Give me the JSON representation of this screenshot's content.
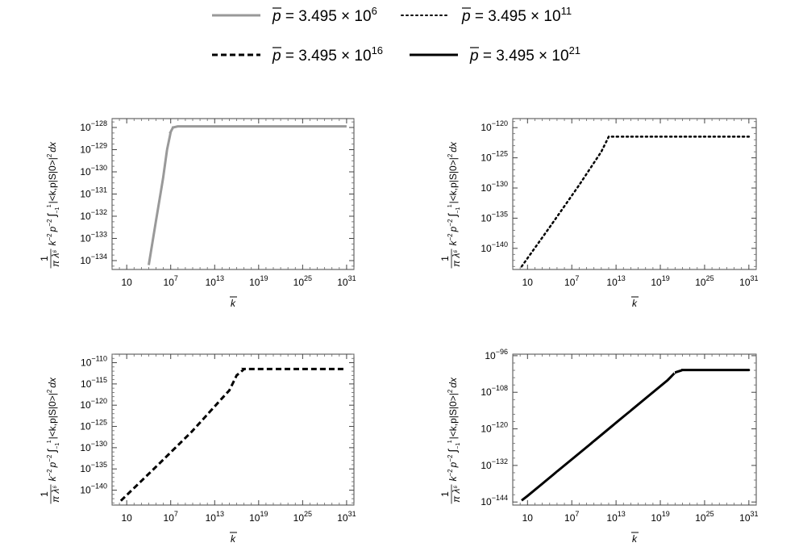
{
  "legend": {
    "entries": [
      {
        "series": "gray",
        "prefix": " = 3.495 × 10",
        "exp": "6",
        "color": "#999999",
        "dash": "solid"
      },
      {
        "series": "dotted",
        "prefix": " = 3.495 × 10",
        "exp": "11",
        "color": "#000000",
        "dash": "dotted"
      },
      {
        "series": "dashed",
        "prefix": " = 3.495 × 10",
        "exp": "16",
        "color": "#000000",
        "dash": "dashed"
      },
      {
        "series": "solid",
        "prefix": " = 3.495 × 10",
        "exp": "21",
        "color": "#000000",
        "dash": "solid"
      }
    ],
    "symbol": "p"
  },
  "axis_labels": {
    "xlabel": "k",
    "ylabel_prefix": "1",
    "ylabel_den": "π λ",
    "ylabel_den_exp": "6",
    "ylabel_body": "|<k,p|S|0>|",
    "ylabel_tail": "dx"
  },
  "chart_data": [
    {
      "type": "line",
      "name": "p = 3.495 × 10^6",
      "xscale": "log",
      "yscale": "log",
      "x_log10": [
        4.0,
        5.0,
        6.0,
        6.5,
        7.0,
        7.3,
        8.0,
        10.0,
        20.0,
        31.0
      ],
      "y_log10": [
        -134.2,
        -132.2,
        -130.2,
        -129.0,
        -128.2,
        -128.0,
        -127.95,
        -127.95,
        -127.95,
        -127.95
      ],
      "color": "#999999",
      "dash": "solid",
      "xlim_log10": [
        -1,
        32
      ],
      "ylim_log10": [
        -134.4,
        -127.6
      ],
      "xticks": [
        {
          "b": "10",
          "e": ""
        },
        {
          "b": "10",
          "e": "7"
        },
        {
          "b": "10",
          "e": "13"
        },
        {
          "b": "10",
          "e": "19"
        },
        {
          "b": "10",
          "e": "25"
        },
        {
          "b": "10",
          "e": "31"
        }
      ],
      "yticks": [
        {
          "b": "10",
          "e": "−128"
        },
        {
          "b": "10",
          "e": "−129"
        },
        {
          "b": "10",
          "e": "−130"
        },
        {
          "b": "10",
          "e": "−131"
        },
        {
          "b": "10",
          "e": "−132"
        },
        {
          "b": "10",
          "e": "−133"
        },
        {
          "b": "10",
          "e": "−134"
        }
      ],
      "xtick_vals_log10": [
        1,
        7,
        13,
        19,
        25,
        31
      ],
      "ytick_vals_log10": [
        -128,
        -129,
        -130,
        -131,
        -132,
        -133,
        -134
      ]
    },
    {
      "type": "line",
      "name": "p = 3.495 × 10^11",
      "xscale": "log",
      "yscale": "log",
      "x_log10": [
        0.2,
        4.0,
        8.0,
        11.0,
        12.0,
        15.0,
        25.0,
        31.0
      ],
      "y_log10": [
        -143.0,
        -136.5,
        -129.5,
        -124.0,
        -121.5,
        -121.5,
        -121.5,
        -121.5
      ],
      "color": "#000000",
      "dash": "dotted",
      "xlim_log10": [
        -1,
        32
      ],
      "ylim_log10": [
        -143.5,
        -118.5
      ],
      "xticks": [
        {
          "b": "10",
          "e": ""
        },
        {
          "b": "10",
          "e": "7"
        },
        {
          "b": "10",
          "e": "13"
        },
        {
          "b": "10",
          "e": "19"
        },
        {
          "b": "10",
          "e": "25"
        },
        {
          "b": "10",
          "e": "31"
        }
      ],
      "yticks": [
        {
          "b": "10",
          "e": "−120"
        },
        {
          "b": "10",
          "e": "−125"
        },
        {
          "b": "10",
          "e": "−130"
        },
        {
          "b": "10",
          "e": "−135"
        },
        {
          "b": "10",
          "e": "−140"
        }
      ],
      "xtick_vals_log10": [
        1,
        7,
        13,
        19,
        25,
        31
      ],
      "ytick_vals_log10": [
        -120,
        -125,
        -130,
        -135,
        -140
      ]
    },
    {
      "type": "line",
      "name": "p = 3.495 × 10^16",
      "xscale": "log",
      "yscale": "log",
      "x_log10": [
        0.2,
        5.0,
        10.0,
        15.0,
        16.0,
        17.0,
        25.0,
        31.0
      ],
      "y_log10": [
        -142.5,
        -134.5,
        -126.0,
        -116.5,
        -113.0,
        -111.5,
        -111.5,
        -111.5
      ],
      "color": "#000000",
      "dash": "dashed",
      "xlim_log10": [
        -1,
        32
      ],
      "ylim_log10": [
        -143.5,
        -108.0
      ],
      "xticks": [
        {
          "b": "10",
          "e": ""
        },
        {
          "b": "10",
          "e": "7"
        },
        {
          "b": "10",
          "e": "13"
        },
        {
          "b": "10",
          "e": "19"
        },
        {
          "b": "10",
          "e": "25"
        },
        {
          "b": "10",
          "e": "31"
        }
      ],
      "yticks": [
        {
          "b": "10",
          "e": "−110"
        },
        {
          "b": "10",
          "e": "−115"
        },
        {
          "b": "10",
          "e": "−120"
        },
        {
          "b": "10",
          "e": "−125"
        },
        {
          "b": "10",
          "e": "−130"
        },
        {
          "b": "10",
          "e": "−135"
        },
        {
          "b": "10",
          "e": "−140"
        }
      ],
      "xtick_vals_log10": [
        1,
        7,
        13,
        19,
        25,
        31
      ],
      "ytick_vals_log10": [
        -110,
        -115,
        -120,
        -125,
        -130,
        -135,
        -140
      ]
    },
    {
      "type": "line",
      "name": "p = 3.495 × 10^21",
      "xscale": "log",
      "yscale": "log",
      "x_log10": [
        0.2,
        1.0,
        5.0,
        10.0,
        15.0,
        20.0,
        21.0,
        22.0,
        25.0,
        31.0
      ],
      "y_log10": [
        -143.5,
        -142.0,
        -134.0,
        -124.0,
        -114.0,
        -104.0,
        -101.5,
        -100.7,
        -100.7,
        -100.7
      ],
      "color": "#000000",
      "dash": "solid",
      "xlim_log10": [
        -1,
        32
      ],
      "ylim_log10": [
        -145.0,
        -95.5
      ],
      "xticks": [
        {
          "b": "10",
          "e": ""
        },
        {
          "b": "10",
          "e": "7"
        },
        {
          "b": "10",
          "e": "13"
        },
        {
          "b": "10",
          "e": "19"
        },
        {
          "b": "10",
          "e": "25"
        },
        {
          "b": "10",
          "e": "31"
        }
      ],
      "yticks": [
        {
          "b": "10",
          "e": "−96"
        },
        {
          "b": "10",
          "e": "−108"
        },
        {
          "b": "10",
          "e": "−120"
        },
        {
          "b": "10",
          "e": "−132"
        },
        {
          "b": "10",
          "e": "−144"
        }
      ],
      "xtick_vals_log10": [
        1,
        7,
        13,
        19,
        25,
        31
      ],
      "ytick_vals_log10": [
        -96,
        -108,
        -120,
        -132,
        -144
      ]
    }
  ]
}
